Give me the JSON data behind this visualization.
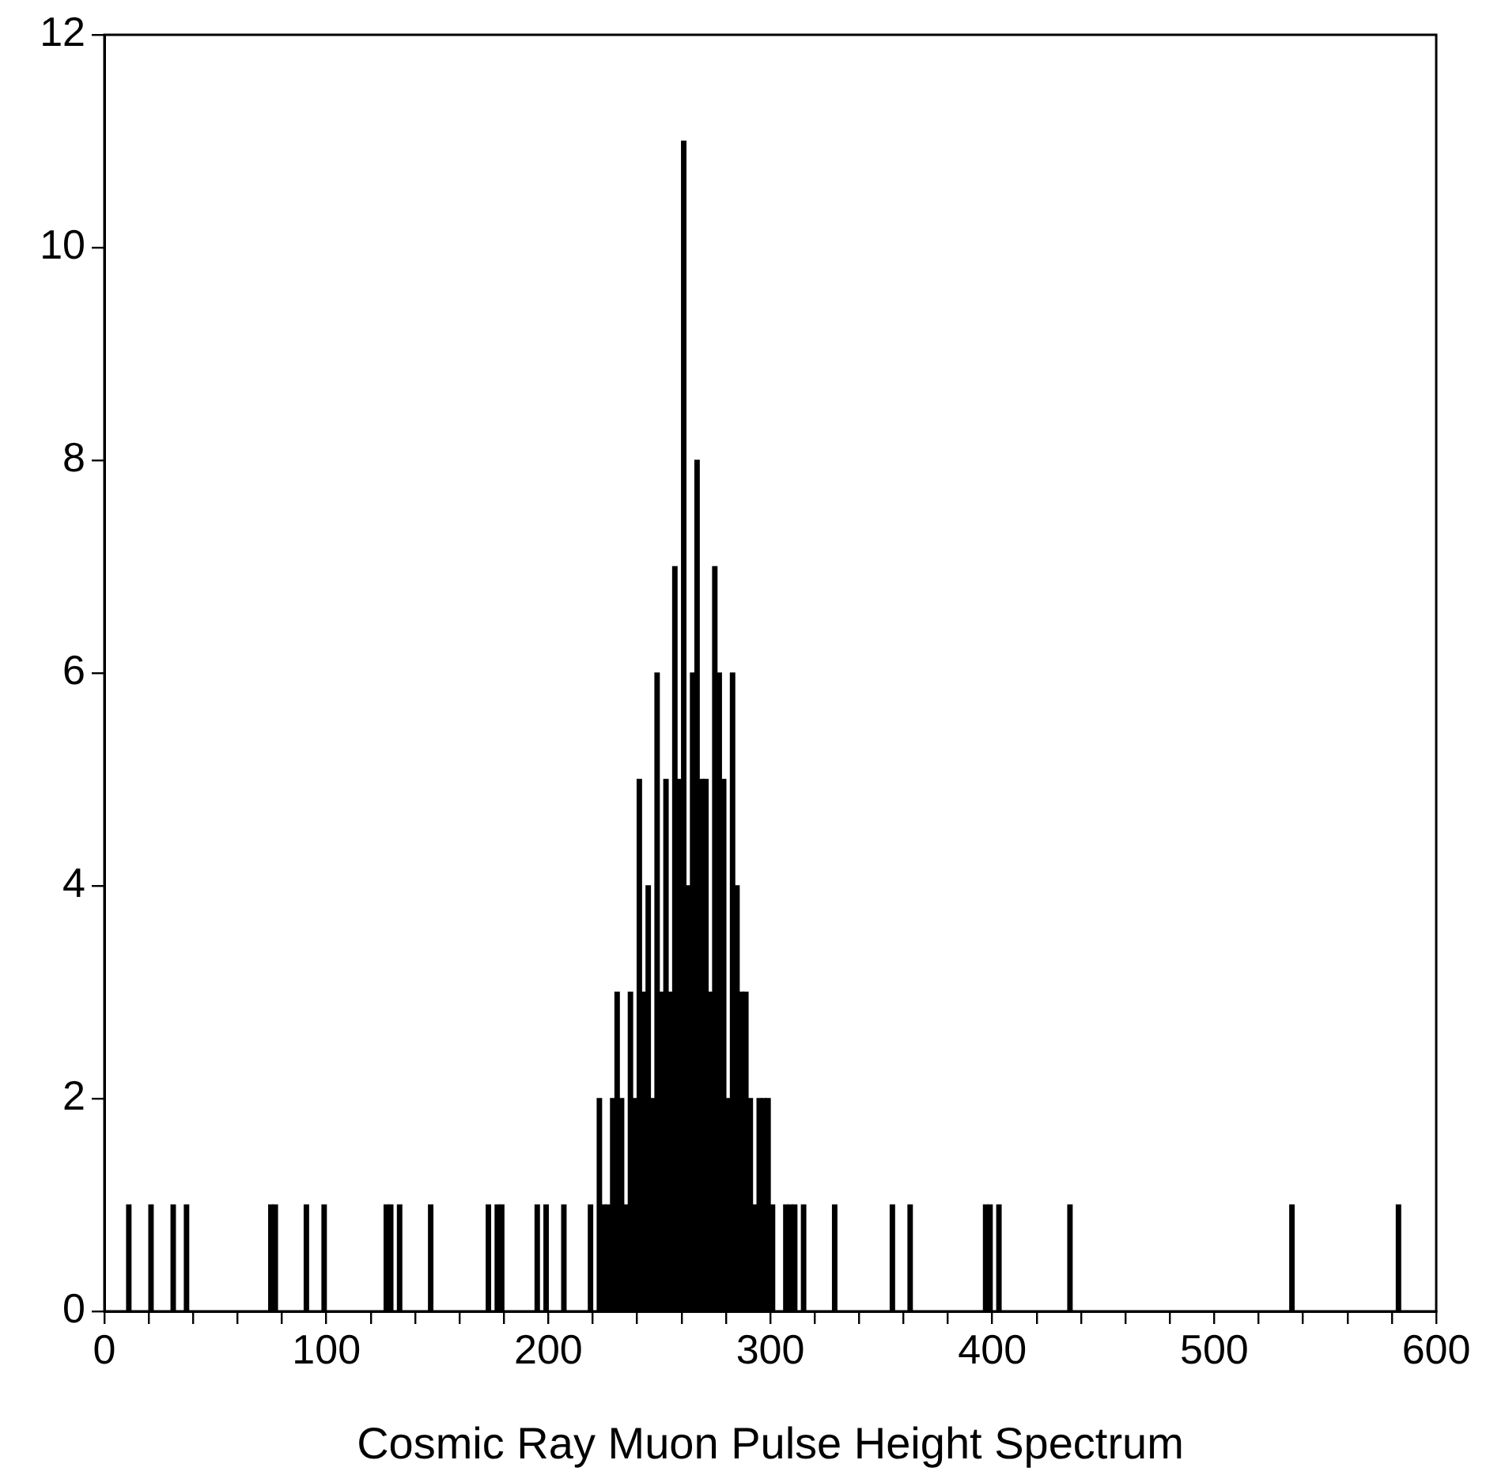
{
  "chart_data": {
    "type": "histogram",
    "xlabel": "Cosmic Ray Muon Pulse Height Spectrum",
    "color": "#000000",
    "bins": [
      0,
      2,
      4,
      6,
      8,
      10,
      12,
      14,
      16,
      18,
      20,
      22,
      24,
      26,
      28,
      30,
      32,
      34,
      36,
      38,
      40,
      42,
      44,
      46,
      48,
      50,
      52,
      54,
      56,
      58,
      60,
      62,
      64,
      66,
      68,
      70,
      72,
      74,
      76,
      78,
      80,
      82,
      84,
      86,
      88,
      90,
      92,
      94,
      96,
      98,
      100,
      102,
      104,
      106,
      108,
      110,
      112,
      114,
      116,
      118,
      120,
      122,
      124,
      126,
      128,
      130,
      132,
      134,
      136,
      138,
      140,
      142,
      144,
      146,
      148,
      150,
      152,
      154,
      156,
      158,
      160,
      162,
      164,
      166,
      168,
      170,
      172,
      174,
      176,
      178,
      180,
      182,
      184,
      186,
      188,
      190,
      192,
      194,
      196,
      198,
      200,
      202,
      204,
      206,
      208,
      210,
      212,
      214,
      216,
      218,
      220,
      222,
      224,
      226,
      228,
      230,
      232,
      234,
      236,
      238,
      240,
      242,
      244,
      246,
      248,
      250,
      252,
      254,
      256,
      258,
      260,
      262,
      264,
      266,
      268,
      270,
      272,
      274,
      276,
      278,
      280,
      282,
      284,
      286,
      288,
      290,
      292,
      294,
      296,
      298,
      300,
      302,
      304,
      306,
      308,
      310,
      312,
      314,
      316,
      318,
      320,
      322,
      324,
      326,
      328,
      330,
      332,
      334,
      336,
      338,
      340,
      342,
      344,
      346,
      348,
      350,
      352,
      354,
      356,
      358,
      360,
      362,
      364,
      366,
      368,
      370,
      372,
      374,
      376,
      378,
      380,
      382,
      384,
      386,
      388,
      390,
      392,
      394,
      396,
      398,
      400,
      402,
      404,
      406,
      408,
      410,
      412,
      414,
      416,
      418,
      420,
      422,
      424,
      426,
      428,
      430,
      432,
      434,
      436,
      438,
      440,
      442,
      444,
      446,
      448,
      450,
      452,
      454,
      456,
      458,
      460,
      462,
      464,
      466,
      468,
      470,
      472,
      474,
      476,
      478,
      480,
      482,
      484,
      486,
      488,
      490,
      492,
      494,
      496,
      498,
      500,
      502,
      504,
      506,
      508,
      510,
      512,
      514,
      516,
      518,
      520,
      522,
      524,
      526,
      528,
      530,
      532,
      534,
      536,
      538,
      540,
      542,
      544,
      546,
      548,
      550,
      552,
      554,
      556,
      558,
      560,
      562,
      564,
      566,
      568,
      570,
      572,
      574,
      576,
      578,
      580,
      582,
      584,
      586,
      588,
      590,
      592,
      594,
      596,
      598,
      600
    ],
    "values": [
      0,
      0,
      0,
      0,
      0,
      1,
      0,
      0,
      0,
      0,
      1,
      0,
      0,
      0,
      0,
      1,
      0,
      0,
      1,
      0,
      0,
      0,
      0,
      0,
      0,
      0,
      0,
      0,
      0,
      0,
      0,
      0,
      0,
      0,
      0,
      0,
      0,
      1,
      1,
      0,
      0,
      0,
      0,
      0,
      0,
      1,
      0,
      0,
      0,
      1,
      0,
      0,
      0,
      0,
      0,
      0,
      0,
      0,
      0,
      0,
      0,
      0,
      0,
      1,
      1,
      0,
      1,
      0,
      0,
      0,
      0,
      0,
      0,
      1,
      0,
      0,
      0,
      0,
      0,
      0,
      0,
      0,
      0,
      0,
      0,
      0,
      1,
      0,
      1,
      1,
      0,
      0,
      0,
      0,
      0,
      0,
      0,
      1,
      0,
      1,
      0,
      0,
      0,
      1,
      0,
      0,
      0,
      0,
      0,
      1,
      0,
      2,
      1,
      1,
      2,
      3,
      2,
      1,
      3,
      2,
      5,
      3,
      4,
      2,
      6,
      3,
      5,
      3,
      7,
      5,
      11,
      4,
      6,
      8,
      5,
      5,
      3,
      7,
      6,
      5,
      2,
      6,
      4,
      3,
      3,
      2,
      1,
      2,
      2,
      2,
      1,
      0,
      0,
      1,
      1,
      1,
      0,
      1,
      0,
      0,
      0,
      0,
      0,
      0,
      1,
      0,
      0,
      0,
      0,
      0,
      0,
      0,
      0,
      0,
      0,
      0,
      0,
      1,
      0,
      0,
      0,
      1,
      0,
      0,
      0,
      0,
      0,
      0,
      0,
      0,
      0,
      0,
      0,
      0,
      0,
      0,
      0,
      0,
      1,
      1,
      0,
      1,
      0,
      0,
      0,
      0,
      0,
      0,
      0,
      0,
      0,
      0,
      0,
      0,
      0,
      0,
      0,
      1,
      0,
      0,
      0,
      0,
      0,
      0,
      0,
      0,
      0,
      0,
      0,
      0,
      0,
      0,
      0,
      0,
      0,
      0,
      0,
      0,
      0,
      0,
      0,
      0,
      0,
      0,
      0,
      0,
      0,
      0,
      0,
      0,
      0,
      0,
      0,
      0,
      0,
      0,
      0,
      0,
      0,
      0,
      0,
      0,
      0,
      0,
      0,
      0,
      0,
      1,
      0,
      0,
      0,
      0,
      0,
      0,
      0,
      0,
      0,
      0,
      0,
      0,
      0,
      0,
      0,
      0,
      0,
      0,
      0,
      0,
      0,
      0,
      0,
      1,
      0,
      0,
      0,
      0,
      0,
      0,
      0,
      0
    ],
    "xlim": [
      0,
      600
    ],
    "xticks": [
      0,
      {
        "value": 20,
        "label": null
      },
      {
        "value": 40,
        "label": null
      },
      {
        "value": 60,
        "label": null
      },
      {
        "value": 80,
        "label": null
      },
      100,
      {
        "value": 120,
        "label": null
      },
      {
        "value": 140,
        "label": null
      },
      {
        "value": 160,
        "label": null
      },
      {
        "value": 180,
        "label": null
      },
      200,
      {
        "value": 220,
        "label": null
      },
      {
        "value": 240,
        "label": null
      },
      {
        "value": 260,
        "label": null
      },
      {
        "value": 280,
        "label": null
      },
      300,
      {
        "value": 320,
        "label": null
      },
      {
        "value": 340,
        "label": null
      },
      {
        "value": 360,
        "label": null
      },
      {
        "value": 380,
        "label": null
      },
      400,
      {
        "value": 420,
        "label": null
      },
      {
        "value": 440,
        "label": null
      },
      {
        "value": 460,
        "label": null
      },
      {
        "value": 480,
        "label": null
      },
      500,
      {
        "value": 520,
        "label": null
      },
      {
        "value": 540,
        "label": null
      },
      {
        "value": 560,
        "label": null
      },
      {
        "value": 580,
        "label": null
      },
      600
    ],
    "ylim": [
      0,
      12
    ],
    "yticks": [
      0,
      2,
      4,
      6,
      8,
      10,
      12
    ],
    "grid": false,
    "legend": false
  }
}
